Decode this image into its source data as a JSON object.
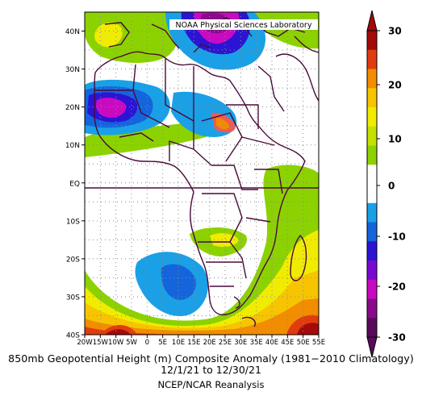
{
  "map": {
    "credit": "NOAA Physical Sciences Laboratory",
    "lat_labels": [
      "40N",
      "30N",
      "20N",
      "10N",
      "EQ",
      "10S",
      "20S",
      "30S",
      "40S"
    ],
    "lon_labels": [
      "20W",
      "15W",
      "10W",
      "5W",
      "0",
      "5E",
      "10E",
      "15E",
      "20E",
      "25E",
      "30E",
      "35E",
      "40E",
      "45E",
      "50E",
      "55E"
    ],
    "extent": {
      "lon_min": -20,
      "lon_max": 55,
      "lat_min": -40,
      "lat_max": 45
    }
  },
  "colorbar": {
    "tick_labels": [
      "30",
      "20",
      "10",
      "0",
      "-10",
      "-20",
      "-30"
    ],
    "colors": [
      "#a50a0a",
      "#e03c10",
      "#f28c00",
      "#f6c500",
      "#f0ec00",
      "#c4e000",
      "#8cd200",
      "#ffffff",
      "#ffffff",
      "#1aa0e6",
      "#1464dc",
      "#2c14d4",
      "#7a0ad2",
      "#c80ac0",
      "#8a0a8a",
      "#5a0a5a"
    ]
  },
  "caption": {
    "line1": "850mb Geopotential Height (m) Composite Anomaly (1981−2010 Climatology)",
    "line2": "12/1/21 to 12/30/21",
    "line3": "NCEP/NCAR Reanalysis"
  }
}
